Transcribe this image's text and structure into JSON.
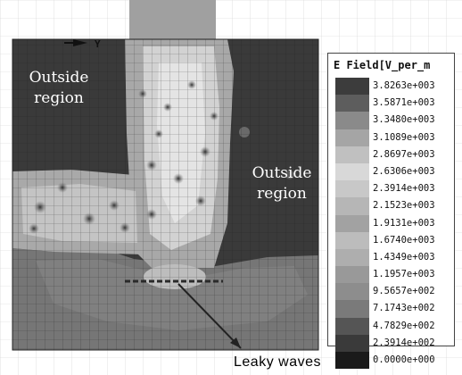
{
  "view": {
    "axis_label": "Y"
  },
  "annotations": {
    "outside_top": [
      "Outside",
      "region"
    ],
    "outside_right": [
      "Outside",
      "region"
    ],
    "leaky_waves": "Leaky waves"
  },
  "legend": {
    "title": "E Field[V_per_m",
    "entries": [
      {
        "value": "3.8263e+003",
        "color": "#3c3c3c"
      },
      {
        "value": "3.5871e+003",
        "color": "#5d5d5d"
      },
      {
        "value": "3.3480e+003",
        "color": "#8a8a8a"
      },
      {
        "value": "3.1089e+003",
        "color": "#a5a5a5"
      },
      {
        "value": "2.8697e+003",
        "color": "#c0c0c0"
      },
      {
        "value": "2.6306e+003",
        "color": "#d8d8d8"
      },
      {
        "value": "2.3914e+003",
        "color": "#c8c8c8"
      },
      {
        "value": "2.1523e+003",
        "color": "#b6b6b6"
      },
      {
        "value": "1.9131e+003",
        "color": "#a2a2a2"
      },
      {
        "value": "1.6740e+003",
        "color": "#bcbcbc"
      },
      {
        "value": "1.4349e+003",
        "color": "#aeaeae"
      },
      {
        "value": "1.1957e+003",
        "color": "#999999"
      },
      {
        "value": "9.5657e+002",
        "color": "#8d8d8d"
      },
      {
        "value": "7.1743e+002",
        "color": "#7a7a7a"
      },
      {
        "value": "4.7829e+002",
        "color": "#555555"
      },
      {
        "value": "2.3914e+002",
        "color": "#3a3a3a"
      },
      {
        "value": "0.0000e+000",
        "color": "#1a1a1a"
      }
    ]
  }
}
